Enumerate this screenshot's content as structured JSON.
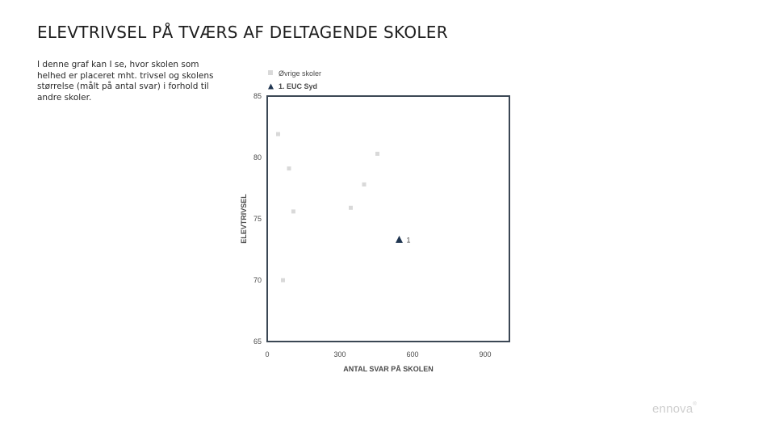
{
  "page": {
    "title": "ELEVTRIVSEL PÅ TVÆRS AF DELTAGENDE SKOLER",
    "description": "I denne graf kan I se, hvor skolen som helhed er placeret mht. trivsel og skolens størrelse (målt på antal svar) i forhold til andre skoler.",
    "logo": "ennova"
  },
  "colors": {
    "other_schools": "#d9d9d9",
    "highlight_school": "#1f3550",
    "frame": "#3b4754"
  },
  "chart_data": {
    "type": "scatter",
    "xlabel": "ANTAL SVAR PÅ SKOLEN",
    "ylabel": "ELEVTRIVSEL",
    "xlim": [
      0,
      1000
    ],
    "ylim": [
      65,
      85
    ],
    "xticks": [
      0,
      300,
      600,
      900
    ],
    "yticks": [
      65,
      70,
      75,
      80,
      85
    ],
    "grid": false,
    "legend_position": "top-left",
    "series": [
      {
        "name": "Øvrige skoler",
        "marker": "square",
        "points": [
          {
            "x": 45,
            "y": 81.9
          },
          {
            "x": 90,
            "y": 79.1
          },
          {
            "x": 455,
            "y": 80.3
          },
          {
            "x": 400,
            "y": 77.8
          },
          {
            "x": 345,
            "y": 75.9
          },
          {
            "x": 108,
            "y": 75.6
          },
          {
            "x": 65,
            "y": 70.0
          }
        ]
      },
      {
        "name": "1. EUC Syd",
        "marker": "triangle",
        "points": [
          {
            "x": 545,
            "y": 73.3,
            "label": "1"
          }
        ]
      }
    ]
  }
}
